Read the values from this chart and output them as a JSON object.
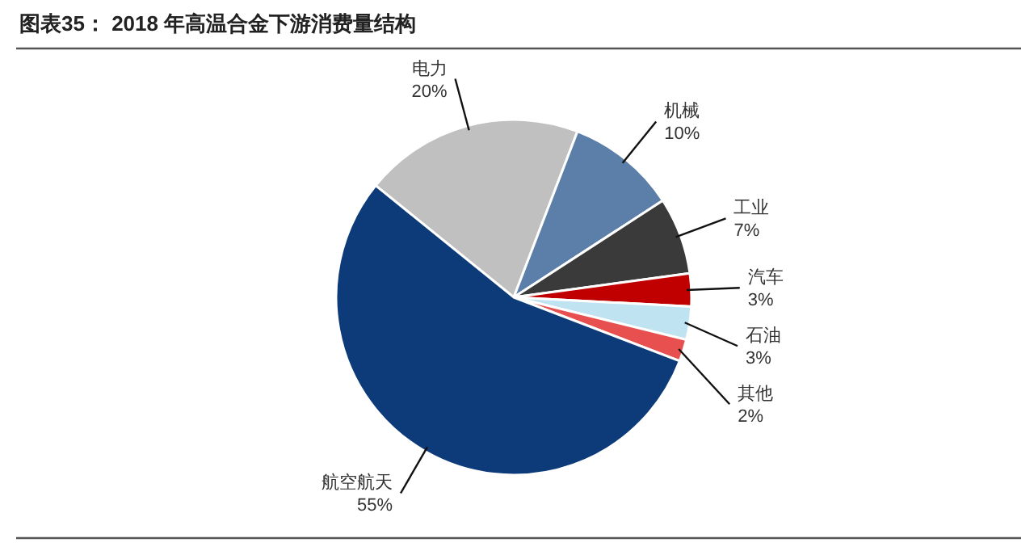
{
  "chart_data": {
    "type": "pie",
    "title": "图表35： 2018 年高温合金下游消费量结构",
    "categories": [
      "电力",
      "机械",
      "工业",
      "汽车",
      "石油",
      "其他",
      "航空航天"
    ],
    "values": [
      20,
      10,
      7,
      3,
      3,
      2,
      55
    ],
    "colors": [
      "#c0c0c0",
      "#5b7fa8",
      "#3a3a3a",
      "#c00000",
      "#bfe3f0",
      "#e85050",
      "#0d3b7a"
    ],
    "value_labels": [
      "20%",
      "10%",
      "7%",
      "3%",
      "3%",
      "2%",
      "55%"
    ]
  }
}
